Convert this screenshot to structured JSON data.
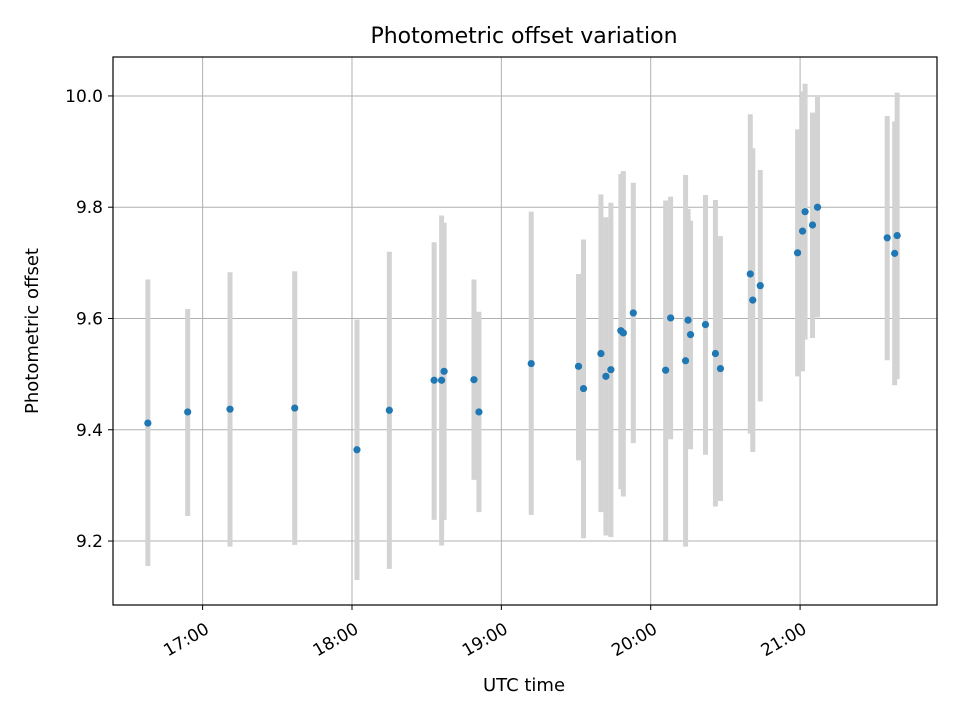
{
  "chart_data": {
    "type": "scatter",
    "title": "Photometric offset variation",
    "xlabel": "UTC time",
    "ylabel": "Photometric offset",
    "xlim": [
      "16:24",
      "21:55"
    ],
    "ylim": [
      9.085,
      10.07
    ],
    "x_ticks": [
      "17:00",
      "18:00",
      "19:00",
      "20:00",
      "21:00"
    ],
    "y_ticks": [
      "9.2",
      "9.4",
      "9.6",
      "9.8",
      "10.0"
    ],
    "grid": true,
    "marker_color": "#1f77b4",
    "errorbar_color": "#d3d3d3",
    "points": [
      {
        "x": "16:38",
        "y": 9.412,
        "ylow": 9.155,
        "yhigh": 9.67
      },
      {
        "x": "16:54",
        "y": 9.432,
        "ylow": 9.245,
        "yhigh": 9.617
      },
      {
        "x": "17:11",
        "y": 9.437,
        "ylow": 9.19,
        "yhigh": 9.683
      },
      {
        "x": "17:37",
        "y": 9.439,
        "ylow": 9.193,
        "yhigh": 9.685
      },
      {
        "x": "18:02",
        "y": 9.364,
        "ylow": 9.13,
        "yhigh": 9.598
      },
      {
        "x": "18:15",
        "y": 9.435,
        "ylow": 9.15,
        "yhigh": 9.72
      },
      {
        "x": "18:33",
        "y": 9.489,
        "ylow": 9.238,
        "yhigh": 9.737
      },
      {
        "x": "18:36",
        "y": 9.489,
        "ylow": 9.192,
        "yhigh": 9.785
      },
      {
        "x": "18:37",
        "y": 9.505,
        "ylow": 9.238,
        "yhigh": 9.772
      },
      {
        "x": "18:49",
        "y": 9.49,
        "ylow": 9.31,
        "yhigh": 9.67
      },
      {
        "x": "18:51",
        "y": 9.432,
        "ylow": 9.252,
        "yhigh": 9.612
      },
      {
        "x": "19:12",
        "y": 9.519,
        "ylow": 9.247,
        "yhigh": 9.792
      },
      {
        "x": "19:31",
        "y": 9.514,
        "ylow": 9.345,
        "yhigh": 9.68
      },
      {
        "x": "19:33",
        "y": 9.474,
        "ylow": 9.205,
        "yhigh": 9.742
      },
      {
        "x": "19:40",
        "y": 9.537,
        "ylow": 9.252,
        "yhigh": 9.823
      },
      {
        "x": "19:42",
        "y": 9.496,
        "ylow": 9.21,
        "yhigh": 9.782
      },
      {
        "x": "19:44",
        "y": 9.508,
        "ylow": 9.207,
        "yhigh": 9.808
      },
      {
        "x": "19:48",
        "y": 9.578,
        "ylow": 9.293,
        "yhigh": 9.86
      },
      {
        "x": "19:49",
        "y": 9.574,
        "ylow": 9.28,
        "yhigh": 9.865
      },
      {
        "x": "19:53",
        "y": 9.61,
        "ylow": 9.376,
        "yhigh": 9.844
      },
      {
        "x": "20:06",
        "y": 9.507,
        "ylow": 9.201,
        "yhigh": 9.812
      },
      {
        "x": "20:08",
        "y": 9.601,
        "ylow": 9.383,
        "yhigh": 9.819
      },
      {
        "x": "20:14",
        "y": 9.524,
        "ylow": 9.19,
        "yhigh": 9.858
      },
      {
        "x": "20:15",
        "y": 9.597,
        "ylow": 9.397,
        "yhigh": 9.797
      },
      {
        "x": "20:16",
        "y": 9.571,
        "ylow": 9.365,
        "yhigh": 9.776
      },
      {
        "x": "20:22",
        "y": 9.589,
        "ylow": 9.355,
        "yhigh": 9.822
      },
      {
        "x": "20:26",
        "y": 9.537,
        "ylow": 9.262,
        "yhigh": 9.813
      },
      {
        "x": "20:28",
        "y": 9.51,
        "ylow": 9.272,
        "yhigh": 9.748
      },
      {
        "x": "20:40",
        "y": 9.68,
        "ylow": 9.393,
        "yhigh": 9.967
      },
      {
        "x": "20:41",
        "y": 9.633,
        "ylow": 9.36,
        "yhigh": 9.906
      },
      {
        "x": "20:44",
        "y": 9.659,
        "ylow": 9.451,
        "yhigh": 9.867
      },
      {
        "x": "20:59",
        "y": 9.718,
        "ylow": 9.496,
        "yhigh": 9.94
      },
      {
        "x": "21:01",
        "y": 9.757,
        "ylow": 9.505,
        "yhigh": 10.008
      },
      {
        "x": "21:02",
        "y": 9.792,
        "ylow": 9.562,
        "yhigh": 10.022
      },
      {
        "x": "21:05",
        "y": 9.768,
        "ylow": 9.565,
        "yhigh": 9.97
      },
      {
        "x": "21:07",
        "y": 9.8,
        "ylow": 9.602,
        "yhigh": 9.998
      },
      {
        "x": "21:35",
        "y": 9.745,
        "ylow": 9.525,
        "yhigh": 9.964
      },
      {
        "x": "21:38",
        "y": 9.717,
        "ylow": 9.48,
        "yhigh": 9.954
      },
      {
        "x": "21:39",
        "y": 9.749,
        "ylow": 9.491,
        "yhigh": 10.006
      }
    ]
  }
}
